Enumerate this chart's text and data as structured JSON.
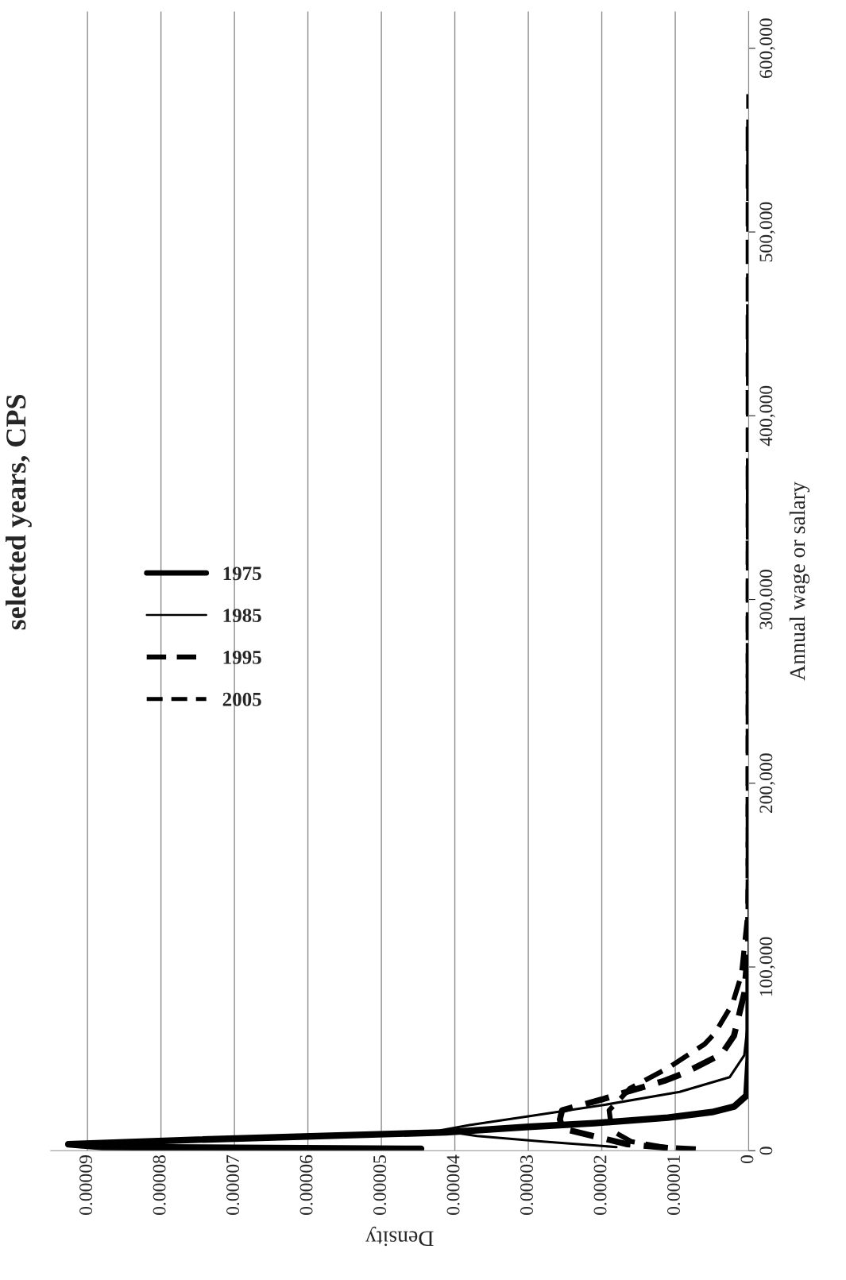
{
  "chart_data": {
    "type": "line",
    "title": "selected years, CPS",
    "xlabel": "Density",
    "ylabel": "Annual wage or salary",
    "ylim": [
      0,
      620000
    ],
    "yticks": [
      {
        "value": 0,
        "label": "0"
      },
      {
        "value": 100000,
        "label": "100,000"
      },
      {
        "value": 200000,
        "label": "200,000"
      },
      {
        "value": 300000,
        "label": "300,000"
      },
      {
        "value": 400000,
        "label": "400,000"
      },
      {
        "value": 500000,
        "label": "500,000"
      },
      {
        "value": 600000,
        "label": "600,000"
      }
    ],
    "xlim": [
      9.5e-05,
      0
    ],
    "xticks": [
      {
        "value": 0,
        "label": "0"
      },
      {
        "value": 1e-05,
        "label": "0.00001"
      },
      {
        "value": 2e-05,
        "label": "0.00002"
      },
      {
        "value": 3e-05,
        "label": "0.00003"
      },
      {
        "value": 4e-05,
        "label": "0.00004"
      },
      {
        "value": 5e-05,
        "label": "0.00005"
      },
      {
        "value": 6e-05,
        "label": "0.00006"
      },
      {
        "value": 7e-05,
        "label": "0.00007"
      },
      {
        "value": 8e-05,
        "label": "0.00008"
      },
      {
        "value": 9e-05,
        "label": "0.00009"
      }
    ],
    "grid": "x",
    "legend": "left",
    "marker": "none",
    "series": [
      {
        "name": "1975",
        "color": "#000000",
        "line_style": "solid",
        "values": [
          1000,
          2000,
          3500,
          6000,
          10000,
          13000,
          15000,
          18000,
          21000,
          24000,
          30000,
          50000,
          100000
        ],
        "x": [
          4.46e-05,
          8.8e-05,
          9.26e-05,
          7.5e-05,
          4.12e-05,
          3e-05,
          2.1e-05,
          1.1e-05,
          5e-06,
          2e-06,
          3e-07,
          0,
          0
        ]
      },
      {
        "name": "1985",
        "color": "#000000",
        "line_style": "solid",
        "values": [
          2000,
          5000,
          8000,
          11000,
          14000,
          18700,
          25000,
          32000,
          40000,
          52000,
          70000,
          100000,
          150000
        ],
        "x": [
          1.8e-05,
          2.8e-05,
          3.7e-05,
          4.2e-05,
          3.8e-05,
          3e-05,
          1.96e-05,
          9.4e-06,
          2.6e-06,
          6e-07,
          1e-07,
          0,
          0
        ]
      },
      {
        "name": "1995",
        "color": "#000000",
        "line_style": "dashed",
        "values": [
          1500,
          3500,
          6500,
          12000,
          17000,
          22000,
          28000,
          31000,
          38000,
          42400,
          52500,
          62600,
          85700,
          110000,
          150000,
          560000
        ],
        "x": [
          1.1e-05,
          1.65e-05,
          1.96e-05,
          2.53e-05,
          2.57e-05,
          2.54e-05,
          1.99e-05,
          1.75e-05,
          1.15e-05,
          8.7e-06,
          3.7e-06,
          2e-06,
          6e-07,
          1e-07,
          0,
          0
        ]
      },
      {
        "name": "2005",
        "color": "#000000",
        "line_style": "dashed",
        "values": [
          1000,
          2000,
          5000,
          10000,
          16000,
          22000,
          26000,
          33800,
          45000,
          58000,
          64000,
          80000,
          95600,
          130000,
          575000
        ],
        "x": [
          7.2e-06,
          1.17e-05,
          1.6e-05,
          1.82e-05,
          1.88e-05,
          1.9e-05,
          1.8e-05,
          1.62e-05,
          1.1e-05,
          6e-06,
          4.6e-06,
          2.2e-06,
          1e-06,
          1e-07,
          0
        ]
      }
    ]
  }
}
